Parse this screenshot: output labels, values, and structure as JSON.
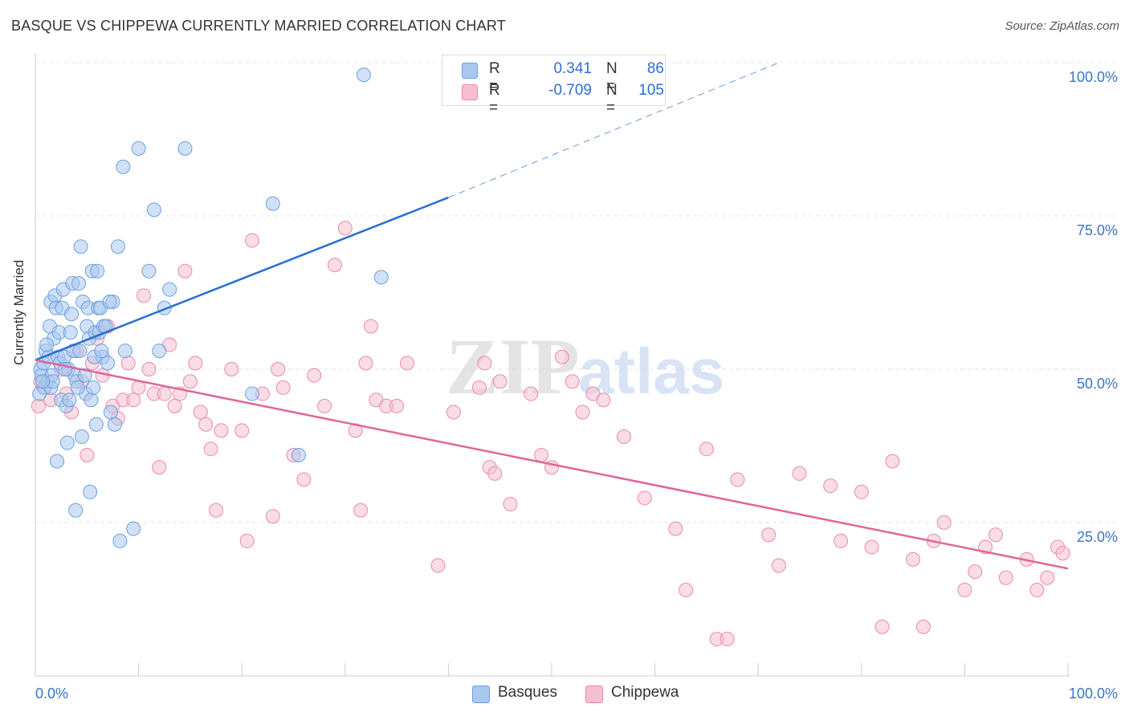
{
  "title": "BASQUE VS CHIPPEWA CURRENTLY MARRIED CORRELATION CHART",
  "source": "Source: ZipAtlas.com",
  "watermark": {
    "zip": "ZIP",
    "atlas": "atlas"
  },
  "legend": {
    "rows": [
      {
        "r_label": "R =",
        "r_value": "0.341",
        "n_label": "N =",
        "n_value": "86"
      },
      {
        "r_label": "R =",
        "r_value": "-0.709",
        "n_label": "N =",
        "n_value": "105"
      }
    ]
  },
  "bottom_legend": [
    "Basques",
    "Chippewa"
  ],
  "colors": {
    "basques_fill": "#a9c8f0",
    "basques_stroke": "#6f9fdc",
    "basques_line": "#2b6fd1",
    "chippewa_fill": "#f6bfd0",
    "chippewa_stroke": "#e98aaa",
    "chippewa_line": "#e0659a",
    "tick_label": "#3a73c9",
    "grid": "#e6e6e6"
  },
  "chart_data": {
    "type": "scatter",
    "title": "BASQUE VS CHIPPEWA CURRENTLY MARRIED CORRELATION CHART",
    "xlabel": "",
    "ylabel": "Currently Married",
    "xlim": [
      0,
      100
    ],
    "ylim": [
      0,
      100
    ],
    "x_tick_labels": [
      "0.0%",
      "100.0%"
    ],
    "y_tick_labels": [
      {
        "value": 25,
        "label": "25.0%"
      },
      {
        "value": 50,
        "label": "50.0%"
      },
      {
        "value": 75,
        "label": "75.0%"
      },
      {
        "value": 100,
        "label": "100.0%"
      }
    ],
    "series": [
      {
        "name": "Basques",
        "r": 0.341,
        "n": 86,
        "trend": {
          "x0": 0,
          "y0": 51.5,
          "x1": 40,
          "y1": 78.0,
          "dash_to_x": 72,
          "dash_to_y": 100
        },
        "points": [
          [
            0.5,
            50
          ],
          [
            0.6,
            49
          ],
          [
            0.8,
            51
          ],
          [
            0.9,
            47
          ],
          [
            1.0,
            53
          ],
          [
            1.2,
            48
          ],
          [
            1.3,
            52
          ],
          [
            1.4,
            57
          ],
          [
            1.5,
            61
          ],
          [
            1.5,
            47
          ],
          [
            1.6,
            49
          ],
          [
            1.8,
            55
          ],
          [
            1.9,
            62
          ],
          [
            2.0,
            60
          ],
          [
            2.2,
            52
          ],
          [
            2.3,
            56
          ],
          [
            2.4,
            51
          ],
          [
            2.5,
            45
          ],
          [
            2.6,
            60
          ],
          [
            2.7,
            63
          ],
          [
            2.8,
            52
          ],
          [
            3.0,
            44
          ],
          [
            3.1,
            38
          ],
          [
            3.2,
            50
          ],
          [
            3.3,
            45
          ],
          [
            3.5,
            59
          ],
          [
            3.6,
            64
          ],
          [
            3.7,
            53
          ],
          [
            3.8,
            49
          ],
          [
            3.9,
            27
          ],
          [
            4.0,
            48
          ],
          [
            4.2,
            64
          ],
          [
            4.3,
            53
          ],
          [
            4.4,
            70
          ],
          [
            4.5,
            39
          ],
          [
            4.6,
            61
          ],
          [
            4.8,
            49
          ],
          [
            4.9,
            46
          ],
          [
            5.0,
            57
          ],
          [
            5.1,
            60
          ],
          [
            5.2,
            55
          ],
          [
            5.3,
            30
          ],
          [
            5.4,
            45
          ],
          [
            5.5,
            66
          ],
          [
            5.6,
            47
          ],
          [
            5.8,
            56
          ],
          [
            5.9,
            41
          ],
          [
            6.0,
            66
          ],
          [
            6.1,
            60
          ],
          [
            6.2,
            56
          ],
          [
            6.3,
            60
          ],
          [
            6.5,
            52
          ],
          [
            6.6,
            57
          ],
          [
            6.8,
            57
          ],
          [
            7.0,
            51
          ],
          [
            7.3,
            43
          ],
          [
            7.5,
            61
          ],
          [
            7.7,
            41
          ],
          [
            8.0,
            70
          ],
          [
            8.2,
            22
          ],
          [
            8.5,
            83
          ],
          [
            8.7,
            53
          ],
          [
            9.5,
            24
          ],
          [
            10.0,
            86
          ],
          [
            11.0,
            66
          ],
          [
            11.5,
            76
          ],
          [
            12.0,
            53
          ],
          [
            12.5,
            60
          ],
          [
            13.0,
            63
          ],
          [
            14.5,
            86
          ],
          [
            21.0,
            46
          ],
          [
            23.0,
            77
          ],
          [
            25.5,
            36
          ],
          [
            31.8,
            98
          ],
          [
            33.5,
            65
          ],
          [
            2.1,
            35
          ],
          [
            1.1,
            54
          ],
          [
            0.4,
            46
          ],
          [
            1.7,
            48
          ],
          [
            2.9,
            50
          ],
          [
            3.4,
            56
          ],
          [
            4.1,
            47
          ],
          [
            5.7,
            52
          ],
          [
            6.4,
            53
          ],
          [
            7.2,
            61
          ],
          [
            0.7,
            48
          ]
        ]
      },
      {
        "name": "Chippewa",
        "r": -0.709,
        "n": 105,
        "trend": {
          "x0": 0,
          "y0": 51.5,
          "x1": 100,
          "y1": 17.5
        },
        "points": [
          [
            0.3,
            44
          ],
          [
            0.8,
            47
          ],
          [
            1.5,
            45
          ],
          [
            2.5,
            50
          ],
          [
            3.0,
            46
          ],
          [
            3.5,
            43
          ],
          [
            4.0,
            53
          ],
          [
            4.5,
            48
          ],
          [
            5.0,
            36
          ],
          [
            5.5,
            51
          ],
          [
            6.0,
            55
          ],
          [
            6.5,
            49
          ],
          [
            7.0,
            57
          ],
          [
            7.5,
            44
          ],
          [
            8.0,
            42
          ],
          [
            8.5,
            45
          ],
          [
            9.0,
            51
          ],
          [
            9.5,
            45
          ],
          [
            10.0,
            47
          ],
          [
            10.5,
            62
          ],
          [
            11.0,
            50
          ],
          [
            11.5,
            46
          ],
          [
            12.0,
            34
          ],
          [
            12.5,
            46
          ],
          [
            13.0,
            54
          ],
          [
            13.5,
            44
          ],
          [
            14.0,
            46
          ],
          [
            14.5,
            66
          ],
          [
            15.0,
            48
          ],
          [
            15.5,
            51
          ],
          [
            16.0,
            43
          ],
          [
            16.5,
            41
          ],
          [
            17.0,
            37
          ],
          [
            17.5,
            27
          ],
          [
            18.0,
            40
          ],
          [
            19.0,
            50
          ],
          [
            20.0,
            40
          ],
          [
            20.5,
            22
          ],
          [
            21.0,
            71
          ],
          [
            22.0,
            46
          ],
          [
            23.0,
            26
          ],
          [
            23.5,
            50
          ],
          [
            24.0,
            47
          ],
          [
            25.0,
            36
          ],
          [
            26.0,
            32
          ],
          [
            27.0,
            49
          ],
          [
            28.0,
            44
          ],
          [
            29.0,
            67
          ],
          [
            30.0,
            73
          ],
          [
            31.0,
            40
          ],
          [
            31.5,
            27
          ],
          [
            32.0,
            51
          ],
          [
            32.5,
            57
          ],
          [
            33.0,
            45
          ],
          [
            34.0,
            44
          ],
          [
            35.0,
            44
          ],
          [
            36.0,
            51
          ],
          [
            39.0,
            18
          ],
          [
            40.5,
            43
          ],
          [
            43.0,
            47
          ],
          [
            43.5,
            51
          ],
          [
            44.0,
            34
          ],
          [
            44.5,
            33
          ],
          [
            45.0,
            48
          ],
          [
            46.0,
            28
          ],
          [
            48.0,
            46
          ],
          [
            49.0,
            36
          ],
          [
            50.0,
            34
          ],
          [
            51.0,
            52
          ],
          [
            52.0,
            48
          ],
          [
            53.0,
            43
          ],
          [
            54.0,
            46
          ],
          [
            55.0,
            45
          ],
          [
            57.0,
            39
          ],
          [
            59.0,
            29
          ],
          [
            62.0,
            24
          ],
          [
            63.0,
            14
          ],
          [
            65.0,
            37
          ],
          [
            66.0,
            6
          ],
          [
            67.0,
            6
          ],
          [
            68.0,
            32
          ],
          [
            71.0,
            23
          ],
          [
            72.0,
            18
          ],
          [
            74.0,
            33
          ],
          [
            77.0,
            31
          ],
          [
            78.0,
            22
          ],
          [
            80.0,
            30
          ],
          [
            81.0,
            21
          ],
          [
            82.0,
            8
          ],
          [
            83.0,
            35
          ],
          [
            85.0,
            19
          ],
          [
            86.0,
            8
          ],
          [
            87.0,
            22
          ],
          [
            88.0,
            25
          ],
          [
            90.0,
            14
          ],
          [
            91.0,
            17
          ],
          [
            92.0,
            21
          ],
          [
            93.0,
            23
          ],
          [
            94.0,
            16
          ],
          [
            96.0,
            19
          ],
          [
            97.0,
            14
          ],
          [
            98.0,
            16
          ],
          [
            99.0,
            21
          ],
          [
            99.5,
            20
          ],
          [
            0.5,
            48
          ]
        ]
      }
    ]
  }
}
